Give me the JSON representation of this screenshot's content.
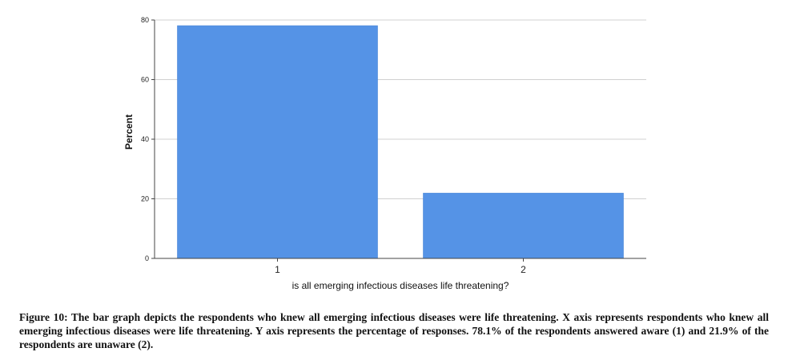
{
  "chart_data": {
    "type": "bar",
    "categories": [
      "1",
      "2"
    ],
    "values": [
      78.1,
      21.9
    ],
    "xlabel": "is all emerging infectious diseases life threatening?",
    "ylabel": "Percent",
    "ylim": [
      0,
      80
    ],
    "yticks": [
      "0",
      "20",
      "40",
      "60",
      "80"
    ],
    "grid": true,
    "bar_color": "#5593E6"
  },
  "caption": "Figure 10: The bar graph depicts the respondents who knew all emerging infectious diseases were life threatening. X axis represents respondents who knew all emerging infectious diseases were life threatening. Y axis represents the percentage of responses. 78.1% of the respondents answered aware (1) and 21.9% of the respondents are unaware (2)."
}
